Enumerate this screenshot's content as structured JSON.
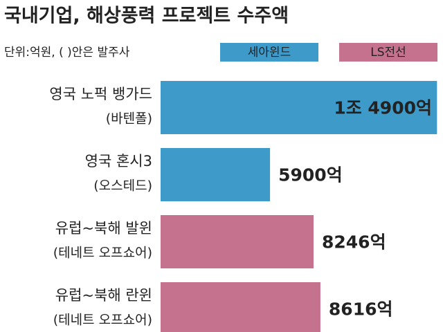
{
  "chart_data": {
    "type": "bar",
    "orientation": "horizontal",
    "title": "국내기업, 해상풍력 프로젝트 수주액",
    "subtitle": "단위:억원, ( )안은 발주사",
    "categories": [
      "영국 노퍽 뱅가드",
      "영국 혼시3",
      "유럽~북해 발윈",
      "유럽~북해 란윈"
    ],
    "developers": [
      "(바텐폴)",
      "(오스테드)",
      "(테네트 오프쇼어)",
      "(테네트 오프쇼어)"
    ],
    "series": [
      {
        "name": "세아윈드",
        "color": "#3d9ac9",
        "values": [
          14900,
          5900,
          null,
          null
        ],
        "value_labels": [
          "1조 4900억",
          "5900억",
          null,
          null
        ]
      },
      {
        "name": "LS전선",
        "color": "#c4728e",
        "values": [
          null,
          null,
          8246,
          8616
        ],
        "value_labels": [
          null,
          null,
          "8246억",
          "8616억"
        ]
      }
    ]
  }
}
